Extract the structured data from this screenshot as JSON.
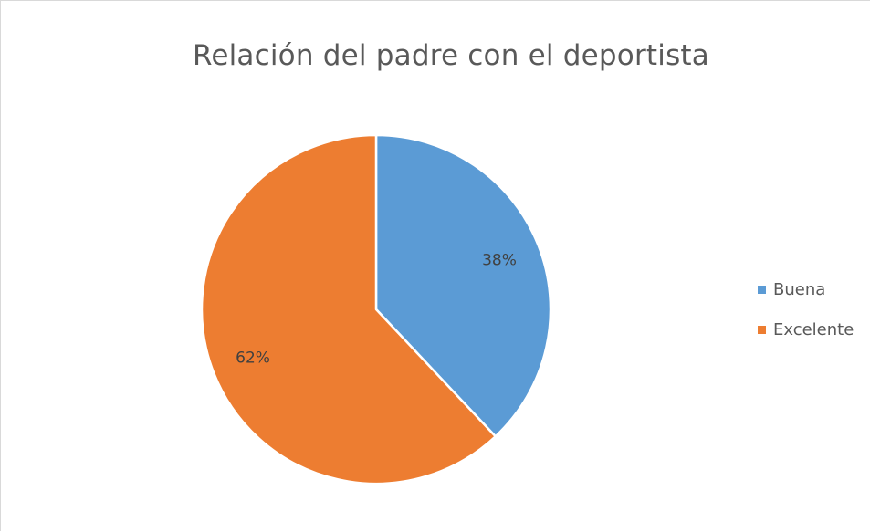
{
  "chart_data": {
    "type": "pie",
    "title": "Relación del padre con el deportista",
    "slices": [
      {
        "label": "Buena",
        "value": 38,
        "display": "38%",
        "color": "#5B9BD5"
      },
      {
        "label": "Excelente",
        "value": 62,
        "display": "62%",
        "color": "#ED7D31"
      }
    ],
    "legend_position": "right",
    "start_angle": "12 o'clock",
    "direction": "clockwise"
  }
}
